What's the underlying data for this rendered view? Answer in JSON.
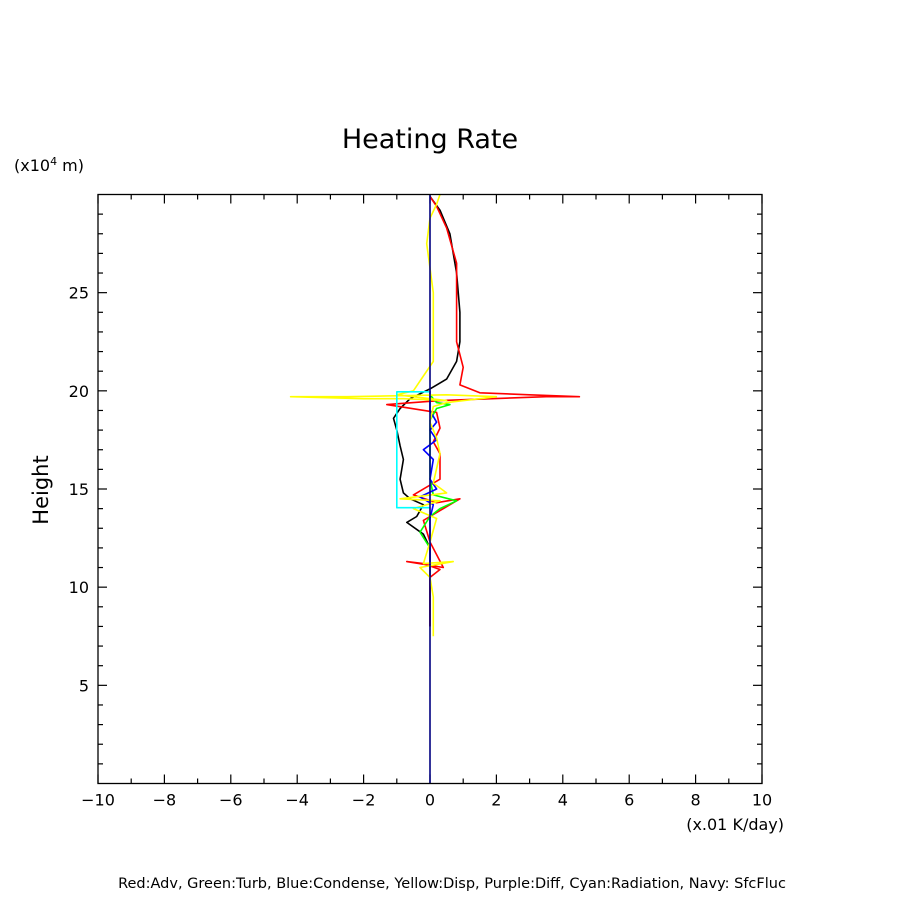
{
  "chart_data": {
    "type": "line",
    "title": "Heating Rate",
    "ylabel": "Height",
    "y_unit_prefix": "(x10",
    "y_unit_exp": "4",
    "y_unit_suffix": " m)",
    "x_unit": "(x.01 K/day)",
    "xlim": [
      -10,
      10
    ],
    "ylim": [
      0,
      30
    ],
    "x_ticks": [
      -10,
      -8,
      -6,
      -4,
      -2,
      0,
      2,
      4,
      6,
      8,
      10
    ],
    "x_tick_labels": [
      "−10",
      "−8",
      "−6",
      "−4",
      "−2",
      "0",
      "2",
      "4",
      "6",
      "8",
      "10"
    ],
    "y_ticks": [
      5,
      10,
      15,
      20,
      25
    ],
    "y_tick_labels": [
      "5",
      "10",
      "15",
      "20",
      "25"
    ],
    "series": [
      {
        "color": "#000000",
        "points": [
          [
            0,
            8
          ],
          [
            0,
            12
          ],
          [
            -0.2,
            12.7
          ],
          [
            -0.7,
            13.3
          ],
          [
            -0.4,
            13.6
          ],
          [
            -0.2,
            14.2
          ],
          [
            -0.6,
            14.5
          ],
          [
            -0.8,
            14.8
          ],
          [
            -0.9,
            15.5
          ],
          [
            -0.8,
            16.5
          ],
          [
            -0.9,
            17.2
          ],
          [
            -1.0,
            18.0
          ],
          [
            -1.1,
            18.6
          ],
          [
            -0.9,
            19.1
          ],
          [
            -0.6,
            19.6
          ],
          [
            0,
            20.1
          ],
          [
            0.5,
            20.6
          ],
          [
            0.8,
            21.5
          ],
          [
            0.9,
            22.5
          ],
          [
            0.9,
            24
          ],
          [
            0.8,
            26
          ],
          [
            0.6,
            28
          ],
          [
            0.3,
            29.2
          ],
          [
            0,
            29.9
          ]
        ]
      },
      {
        "color": "#ff0000",
        "points": [
          [
            0,
            8
          ],
          [
            0,
            10.5
          ],
          [
            0.3,
            10.9
          ],
          [
            -0.2,
            11.2
          ],
          [
            -0.7,
            11.3
          ],
          [
            0.4,
            11.0
          ],
          [
            0,
            12.3
          ],
          [
            -0.2,
            13.4
          ],
          [
            0.2,
            13.8
          ],
          [
            0.5,
            14.1
          ],
          [
            0.9,
            14.5
          ],
          [
            0.2,
            14.3
          ],
          [
            -0.5,
            14.7
          ],
          [
            0.3,
            15.5
          ],
          [
            0.3,
            16.8
          ],
          [
            0.1,
            17.4
          ],
          [
            0.3,
            18.1
          ],
          [
            0.2,
            18.9
          ],
          [
            -1.3,
            19.3
          ],
          [
            0.3,
            19.5
          ],
          [
            3.5,
            19.7
          ],
          [
            4.5,
            19.7
          ],
          [
            3.0,
            19.8
          ],
          [
            1.5,
            19.9
          ],
          [
            0.9,
            20.3
          ],
          [
            1.0,
            21.2
          ],
          [
            0.8,
            22.5
          ],
          [
            0.8,
            24.5
          ],
          [
            0.8,
            26.5
          ],
          [
            0.5,
            28.3
          ],
          [
            0.2,
            29.4
          ],
          [
            0,
            29.9
          ]
        ]
      },
      {
        "color": "#00ff00",
        "points": [
          [
            0,
            12
          ],
          [
            -0.3,
            12.8
          ],
          [
            0,
            13.6
          ],
          [
            0.3,
            14
          ],
          [
            0.8,
            14.4
          ],
          [
            0.1,
            14.7
          ],
          [
            0,
            15.5
          ],
          [
            0,
            18.5
          ],
          [
            0.2,
            19.1
          ],
          [
            0.6,
            19.3
          ],
          [
            0.2,
            19.4
          ],
          [
            0,
            19.8
          ]
        ]
      },
      {
        "color": "#0000ff",
        "points": [
          [
            0,
            11
          ],
          [
            0,
            13.5
          ],
          [
            0.1,
            14.2
          ],
          [
            -0.3,
            14.6
          ],
          [
            0.2,
            15.0
          ],
          [
            0,
            15.5
          ],
          [
            0.1,
            16.5
          ],
          [
            -0.2,
            17.0
          ],
          [
            0.2,
            17.5
          ],
          [
            0,
            18.0
          ],
          [
            0.2,
            18.4
          ],
          [
            0,
            19.0
          ],
          [
            0,
            20
          ]
        ]
      },
      {
        "color": "#ffff00",
        "points": [
          [
            0.1,
            7.5
          ],
          [
            0.1,
            9.5
          ],
          [
            0,
            10.5
          ],
          [
            -0.3,
            11.0
          ],
          [
            0.7,
            11.3
          ],
          [
            -0.2,
            11.2
          ],
          [
            0,
            12.3
          ],
          [
            0.2,
            13.5
          ],
          [
            -0.5,
            14
          ],
          [
            0.3,
            14.4
          ],
          [
            -0.9,
            14.5
          ],
          [
            0.5,
            14.8
          ],
          [
            0.1,
            15.3
          ],
          [
            0.3,
            16.8
          ],
          [
            0.2,
            17.6
          ],
          [
            0,
            18.4
          ],
          [
            0.1,
            19.2
          ],
          [
            0.5,
            19.4
          ],
          [
            1.5,
            19.6
          ],
          [
            2.0,
            19.7
          ],
          [
            0.5,
            19.8
          ],
          [
            -2.5,
            19.7
          ],
          [
            -4.2,
            19.7
          ],
          [
            -2.0,
            19.6
          ],
          [
            -0.8,
            19.6
          ],
          [
            0.5,
            19.5
          ],
          [
            -1.0,
            19.8
          ],
          [
            -0.5,
            20.0
          ],
          [
            -0.3,
            20.5
          ],
          [
            0.1,
            21.5
          ],
          [
            0.1,
            23
          ],
          [
            0.1,
            25
          ],
          [
            -0.1,
            27.5
          ],
          [
            0,
            28.8
          ],
          [
            0.2,
            29.5
          ],
          [
            0.3,
            30
          ]
        ]
      },
      {
        "color": "#00ffff",
        "points": [
          [
            0,
            14.05
          ],
          [
            -1.0,
            14.05
          ],
          [
            -1.0,
            19.95
          ],
          [
            0,
            19.95
          ]
        ]
      },
      {
        "color": "#000080",
        "points": [
          [
            0,
            0
          ],
          [
            0,
            30
          ]
        ]
      }
    ],
    "legend_text": "Red:Adv, Green:Turb, Blue:Condense, Yellow:Disp, Purple:Diff, Cyan:Radiation, Navy: SfcFluc"
  }
}
